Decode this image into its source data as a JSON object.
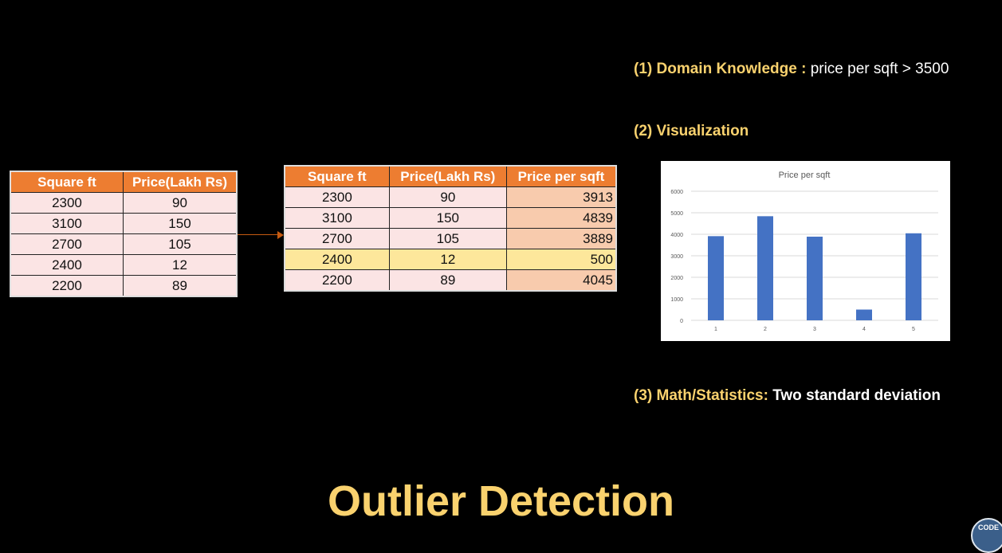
{
  "table1": {
    "headers": [
      "Square ft",
      "Price(Lakh Rs)"
    ],
    "rows": [
      [
        "2300",
        "90"
      ],
      [
        "3100",
        "150"
      ],
      [
        "2700",
        "105"
      ],
      [
        "2400",
        "12"
      ],
      [
        "2200",
        "89"
      ]
    ]
  },
  "table2": {
    "headers": [
      "Square ft",
      "Price(Lakh Rs)",
      "Price per sqft"
    ],
    "rows": [
      [
        "2300",
        "90",
        "3913"
      ],
      [
        "3100",
        "150",
        "4839"
      ],
      [
        "2700",
        "105",
        "3889"
      ],
      [
        "2400",
        "12",
        "500"
      ],
      [
        "2200",
        "89",
        "4045"
      ]
    ],
    "highlight_color": "#fde79b"
  },
  "methods": {
    "m1_label": "(1) Domain Knowledge :",
    "m1_text": "price per sqft > 3500",
    "m2_label": "(2) Visualization",
    "m3_label": "(3) Math/Statistics:",
    "m3_text": "Two standard deviation"
  },
  "title": "Outlier Detection",
  "logo_text": "CODE",
  "colors": {
    "accent_gold": "#fad26e",
    "header_orange": "#ed7d31",
    "bar_blue": "#4472c4"
  },
  "chart_data": {
    "type": "bar",
    "title": "Price per sqft",
    "categories": [
      "1",
      "2",
      "3",
      "4",
      "5"
    ],
    "values": [
      3913,
      4839,
      3889,
      500,
      4045
    ],
    "ylim": [
      0,
      6000
    ],
    "yticks": [
      "0",
      "1000",
      "2000",
      "3000",
      "4000",
      "5000",
      "6000"
    ],
    "grid": true,
    "xlabel": "",
    "ylabel": ""
  }
}
